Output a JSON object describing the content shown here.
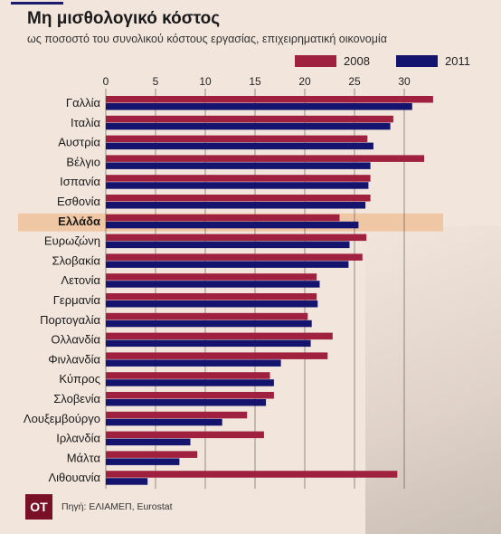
{
  "header": {
    "title": "Μη μισθολογικό κόστος",
    "subtitle": "ως ποσοστό του συνολικού κόστους εργασίας, επιχειρηματική οικονομία"
  },
  "footer": {
    "logo_text": "ΟΤ",
    "source": "Πηγή: ΕΛΙΑΜΕΠ, Eurostat"
  },
  "colors": {
    "series_2008": "#a0203f",
    "series_2011": "#14146e",
    "highlight_row": "#efc7a4",
    "background": "#f2e6dc"
  },
  "chart_data": {
    "type": "bar",
    "orientation": "horizontal",
    "title": "Μη μισθολογικό κόστος",
    "subtitle": "ως ποσοστό του συνολικού κόστους εργασίας, επιχειρηματική οικονομία",
    "highlight_category": "Ελλάδα",
    "categories": [
      "Γαλλία",
      "Ιταλία",
      "Αυστρία",
      "Βέλγιο",
      "Ισπανία",
      "Εσθονία",
      "Ελλάδα",
      "Ευρωζώνη",
      "Σλοβακία",
      "Λετονία",
      "Γερμανία",
      "Πορτογαλία",
      "Ολλανδία",
      "Φινλανδία",
      "Κύπρος",
      "Σλοβενία",
      "Λουξεμβούργο",
      "Ιρλανδία",
      "Μάλτα",
      "Λιθουανία"
    ],
    "series": [
      {
        "name": "2008",
        "values": [
          32.9,
          28.9,
          26.3,
          32.0,
          26.6,
          26.6,
          23.5,
          26.2,
          25.8,
          21.2,
          21.2,
          20.3,
          22.8,
          22.3,
          16.5,
          16.9,
          14.2,
          15.9,
          9.2,
          29.3
        ]
      },
      {
        "name": "2011",
        "values": [
          30.8,
          28.6,
          26.9,
          26.6,
          26.4,
          26.1,
          25.4,
          24.5,
          24.4,
          21.5,
          21.3,
          20.7,
          20.6,
          17.6,
          16.9,
          16.1,
          11.7,
          8.5,
          7.4,
          4.2
        ]
      }
    ],
    "xticks": [
      0,
      5,
      10,
      15,
      20,
      25,
      30
    ],
    "xlim": [
      0,
      33.5
    ],
    "grid": true,
    "legend_position": "top-right"
  }
}
